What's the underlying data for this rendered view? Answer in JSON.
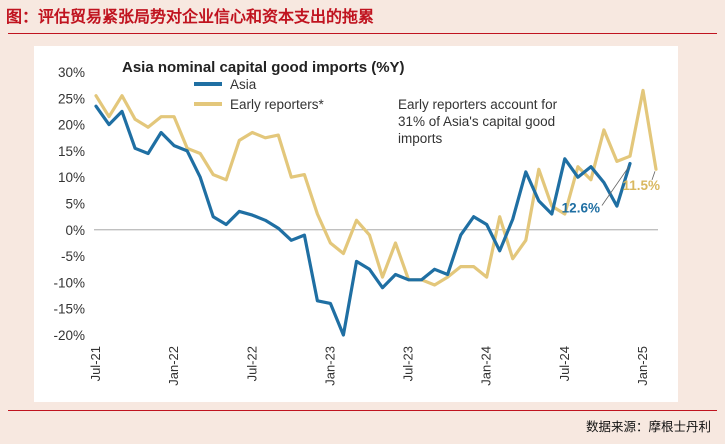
{
  "figure_title": "图：评估贸易紧张局势对企业信心和资本支出的拖累",
  "source_note": "数据来源：摩根士丹利",
  "colors": {
    "asia": "#1f6fa3",
    "early": "#e3c77b",
    "title_red": "#c0131f",
    "panel_bg": "#f7e8e0"
  },
  "chart_data": {
    "type": "line",
    "title": "Asia nominal capital good imports (%Y)",
    "xlabel": "",
    "ylabel": "",
    "ylim": [
      -20,
      30
    ],
    "yticks": [
      "30%",
      "25%",
      "20%",
      "15%",
      "10%",
      "5%",
      "0%",
      "-5%",
      "-10%",
      "-15%",
      "-20%"
    ],
    "xticks": [
      {
        "label": "Jul-21",
        "index": 0
      },
      {
        "label": "Jan-22",
        "index": 6
      },
      {
        "label": "Jul-22",
        "index": 12
      },
      {
        "label": "Jan-23",
        "index": 18
      },
      {
        "label": "Jul-23",
        "index": 24
      },
      {
        "label": "Jan-24",
        "index": 30
      },
      {
        "label": "Jul-24",
        "index": 36
      },
      {
        "label": "Jan-25",
        "index": 42
      }
    ],
    "series": [
      {
        "name": "Asia",
        "color": "#1f6fa3",
        "values": [
          23.5,
          20,
          22.5,
          15.5,
          14.5,
          18.5,
          16,
          15,
          10,
          2.5,
          1,
          3.5,
          2.8,
          1.8,
          0.3,
          -2,
          -1,
          -13.5,
          -14,
          -20,
          -6,
          -7.5,
          -11,
          -8.5,
          -9.5,
          -9.5,
          -7.5,
          -8.5,
          -1,
          2.5,
          1,
          -4,
          2,
          11,
          5.5,
          3,
          13.5,
          10,
          12,
          9,
          4.5,
          12.6
        ]
      },
      {
        "name": "Early reporters*",
        "color": "#e3c77b",
        "values": [
          25.5,
          21.5,
          25.5,
          21,
          19.5,
          21.5,
          21.5,
          15.5,
          14.5,
          10.5,
          9.5,
          17,
          18.5,
          17.5,
          18,
          10,
          10.5,
          3,
          -2.5,
          -4.5,
          1.8,
          -1,
          -9,
          -2.5,
          -9.5,
          -9.5,
          -10.5,
          -9,
          -7,
          -7,
          -9,
          2.5,
          -5.5,
          -2,
          11.5,
          4.5,
          3,
          12,
          9.5,
          19,
          13,
          14,
          26.5,
          11.5
        ]
      }
    ],
    "annotations": [
      {
        "text_lines": [
          "Early reporters account for",
          "31% of Asia's capital good",
          "imports"
        ]
      },
      {
        "text": "12.6%",
        "series": "Asia"
      },
      {
        "text": "11.5%",
        "series": "Early reporters*"
      }
    ],
    "legend": "top-left",
    "grid": false
  }
}
